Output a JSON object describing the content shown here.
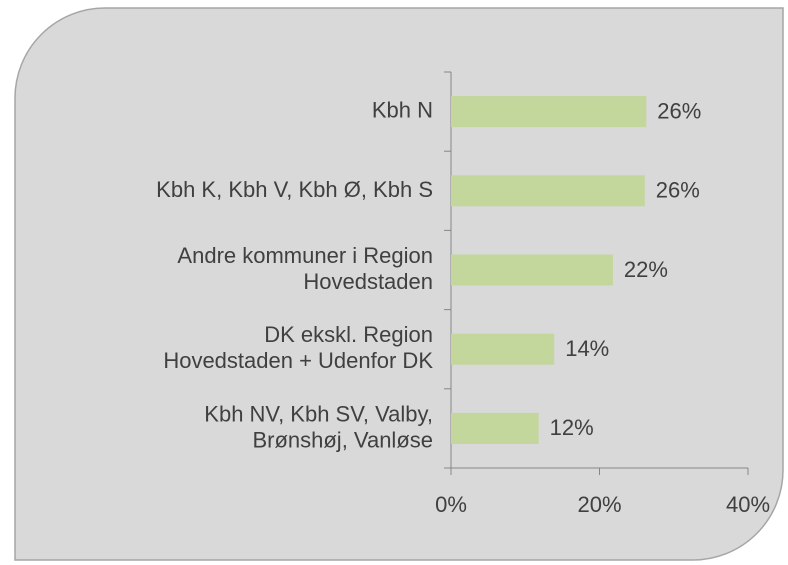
{
  "chart_data": {
    "type": "barh",
    "categories": [
      "Kbh N",
      "Kbh K, Kbh V, Kbh Ø, Kbh S",
      "Andre kommuner i Region\nHovedstaden",
      "DK ekskl. Region\nHovedstaden + Udenfor DK",
      "Kbh NV, Kbh SV, Valby,\nBrønshøj, Vanløse"
    ],
    "values": [
      26.3,
      26.1,
      21.8,
      13.9,
      11.8
    ],
    "value_labels": [
      "26%",
      "26%",
      "22%",
      "14%",
      "12%"
    ],
    "color": "#c3d69b",
    "xlim": [
      0,
      40
    ],
    "xticks": [
      {
        "value": 0,
        "label": "0%"
      },
      {
        "value": 20,
        "label": "20%"
      },
      {
        "value": 40,
        "label": "40%"
      }
    ]
  }
}
